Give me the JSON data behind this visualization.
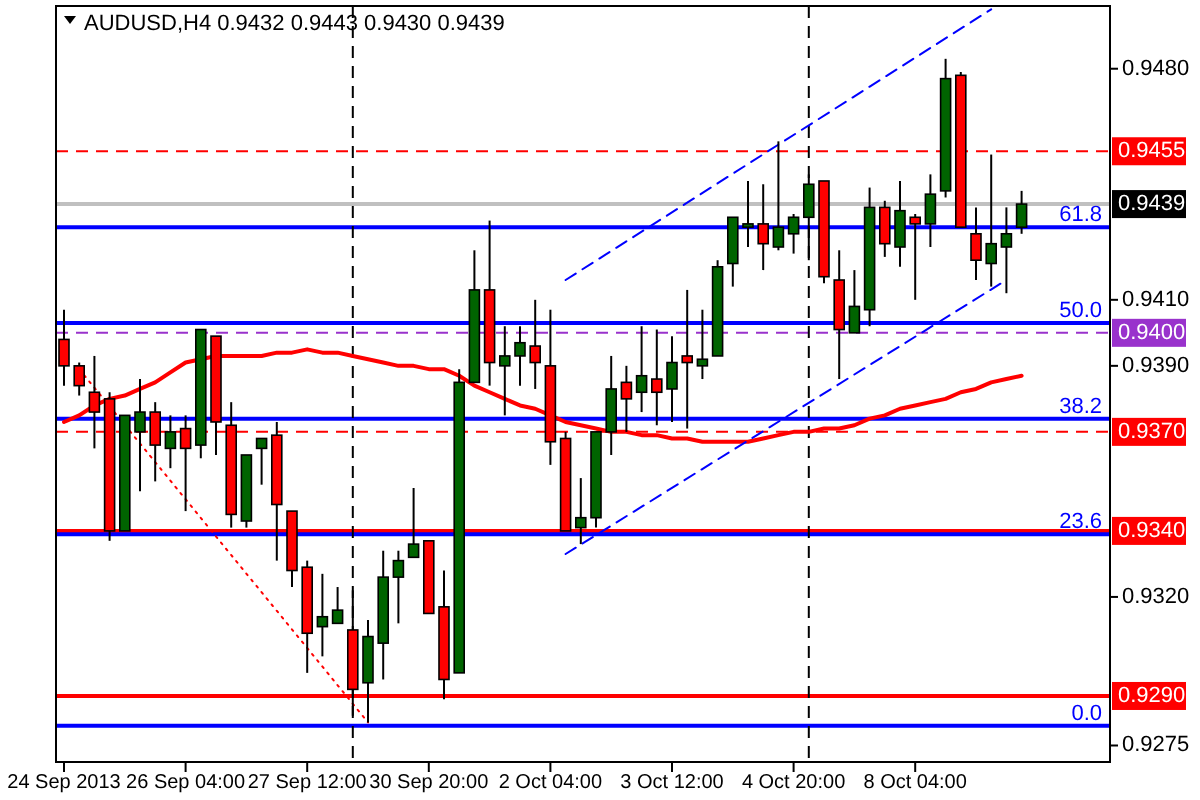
{
  "chart_data": {
    "type": "candlestick",
    "title": "AUDUSD,H4 0.9432 0.9443 0.9430 0.9439",
    "categories": [
      "24 Sep 2013",
      null,
      null,
      null,
      null,
      null,
      null,
      null,
      "26 Sep 04:00",
      null,
      null,
      null,
      null,
      null,
      null,
      null,
      "27 Sep 12:00",
      null,
      null,
      null,
      null,
      null,
      null,
      null,
      "30 Sep 20:00",
      null,
      null,
      null,
      null,
      null,
      null,
      null,
      "2 Oct 04:00",
      null,
      null,
      null,
      null,
      null,
      null,
      null,
      "3 Oct 12:00",
      null,
      null,
      null,
      null,
      null,
      null,
      null,
      "4 Oct 20:00",
      null,
      null,
      null,
      null,
      null,
      null,
      null,
      "8 Oct 04:00",
      null,
      null,
      null,
      null,
      null,
      null,
      null
    ],
    "ohlc": [
      [
        0.9398,
        0.9407,
        0.9384,
        0.939
      ],
      [
        0.939,
        0.9391,
        0.9381,
        0.9384
      ],
      [
        0.9382,
        0.9393,
        0.9365,
        0.9376
      ],
      [
        0.938,
        0.9382,
        0.9337,
        0.934
      ],
      [
        0.934,
        0.9375,
        0.934,
        0.9375
      ],
      [
        0.937,
        0.9386,
        0.9352,
        0.9376
      ],
      [
        0.9376,
        0.9379,
        0.9355,
        0.9366
      ],
      [
        0.9365,
        0.9375,
        0.9359,
        0.937
      ],
      [
        0.9371,
        0.9375,
        0.9346,
        0.9365
      ],
      [
        0.9366,
        0.9401,
        0.9362,
        0.9401
      ],
      [
        0.9399,
        0.9399,
        0.9363,
        0.9373
      ],
      [
        0.9372,
        0.9379,
        0.9341,
        0.9345
      ],
      [
        0.9343,
        0.9363,
        0.9341,
        0.9363
      ],
      [
        0.9365,
        0.9368,
        0.9354,
        0.9368
      ],
      [
        0.9369,
        0.9373,
        0.9331,
        0.9348
      ],
      [
        0.9346,
        0.9346,
        0.9323,
        0.9328
      ],
      [
        0.9329,
        0.9331,
        0.9297,
        0.9309
      ],
      [
        0.9311,
        0.9327,
        0.9302,
        0.9314
      ],
      [
        0.9312,
        0.9323,
        0.9312,
        0.9316
      ],
      [
        0.931,
        0.9322,
        0.9284,
        0.9292
      ],
      [
        0.9294,
        0.9313,
        0.9282,
        0.9308
      ],
      [
        0.9306,
        0.9334,
        0.9295,
        0.9326
      ],
      [
        0.9326,
        0.9334,
        0.9312,
        0.9331
      ],
      [
        0.9332,
        0.9353,
        0.9332,
        0.9336
      ],
      [
        0.9337,
        0.9337,
        0.9315,
        0.9315
      ],
      [
        0.9317,
        0.9328,
        0.9289,
        0.9295
      ],
      [
        0.9297,
        0.9389,
        0.9297,
        0.9385
      ],
      [
        0.9385,
        0.9425,
        0.9385,
        0.9413
      ],
      [
        0.9413,
        0.9434,
        0.9384,
        0.9391
      ],
      [
        0.939,
        0.9402,
        0.9375,
        0.9393
      ],
      [
        0.9393,
        0.9402,
        0.9384,
        0.9397
      ],
      [
        0.9396,
        0.941,
        0.9383,
        0.9391
      ],
      [
        0.939,
        0.9407,
        0.936,
        0.9367
      ],
      [
        0.9368,
        0.937,
        0.934,
        0.934
      ],
      [
        0.9341,
        0.9356,
        0.9336,
        0.9344
      ],
      [
        0.9344,
        0.937,
        0.9341,
        0.937
      ],
      [
        0.937,
        0.9393,
        0.9363,
        0.9383
      ],
      [
        0.9385,
        0.939,
        0.937,
        0.938
      ],
      [
        0.9382,
        0.9402,
        0.9376,
        0.9387
      ],
      [
        0.9386,
        0.9401,
        0.9372,
        0.9382
      ],
      [
        0.9383,
        0.9399,
        0.9373,
        0.9391
      ],
      [
        0.9393,
        0.9413,
        0.9371,
        0.9391
      ],
      [
        0.939,
        0.9407,
        0.9386,
        0.9392
      ],
      [
        0.9393,
        0.9422,
        0.9393,
        0.942
      ],
      [
        0.9421,
        0.9435,
        0.9414,
        0.9435
      ],
      [
        0.9432,
        0.9446,
        0.9426,
        0.9433
      ],
      [
        0.9433,
        0.9445,
        0.9419,
        0.9427
      ],
      [
        0.9426,
        0.9458,
        0.9425,
        0.9432
      ],
      [
        0.943,
        0.9436,
        0.9424,
        0.9435
      ],
      [
        0.9435,
        0.9448,
        0.9422,
        0.9445
      ],
      [
        0.9446,
        0.9446,
        0.9415,
        0.9417
      ],
      [
        0.9416,
        0.9425,
        0.9386,
        0.9401
      ],
      [
        0.94,
        0.9419,
        0.94,
        0.9408
      ],
      [
        0.9407,
        0.9444,
        0.9402,
        0.9438
      ],
      [
        0.9438,
        0.944,
        0.9423,
        0.9427
      ],
      [
        0.9426,
        0.9446,
        0.942,
        0.9437
      ],
      [
        0.9435,
        0.9436,
        0.941,
        0.9433
      ],
      [
        0.9433,
        0.9448,
        0.9426,
        0.9442
      ],
      [
        0.9443,
        0.9483,
        0.9441,
        0.9477
      ],
      [
        0.9478,
        0.9479,
        0.9432,
        0.9432
      ],
      [
        0.943,
        0.9438,
        0.9416,
        0.9422
      ],
      [
        0.9421,
        0.9454,
        0.9414,
        0.9427
      ],
      [
        0.9426,
        0.9438,
        0.9412,
        0.943
      ],
      [
        0.9432,
        0.9443,
        0.943,
        0.9439
      ]
    ],
    "colors": [
      "#ff0000",
      "#ff0000",
      "#ff0000",
      "#ff0000",
      "#006400",
      "#006400",
      "#ff0000",
      "#006400",
      "#ff0000",
      "#006400",
      "#ff0000",
      "#ff0000",
      "#006400",
      "#006400",
      "#ff0000",
      "#ff0000",
      "#ff0000",
      "#006400",
      "#006400",
      "#ff0000",
      "#006400",
      "#006400",
      "#006400",
      "#006400",
      "#ff0000",
      "#ff0000",
      "#006400",
      "#006400",
      "#ff0000",
      "#006400",
      "#006400",
      "#ff0000",
      "#ff0000",
      "#ff0000",
      "#006400",
      "#006400",
      "#006400",
      "#ff0000",
      "#006400",
      "#ff0000",
      "#006400",
      "#ff0000",
      "#006400",
      "#006400",
      "#006400",
      "#006400",
      "#ff0000",
      "#006400",
      "#006400",
      "#006400",
      "#ff0000",
      "#ff0000",
      "#006400",
      "#006400",
      "#ff0000",
      "#006400",
      "#ff0000",
      "#006400",
      "#006400",
      "#ff0000",
      "#ff0000",
      "#006400",
      "#006400",
      "#006400"
    ],
    "series": [
      {
        "type": "line",
        "color": "#ff0000",
        "values": [
          0.9373,
          0.9375,
          0.9378,
          0.938,
          0.9381,
          0.9383,
          0.9385,
          0.9388,
          0.9391,
          0.9392,
          0.9393,
          0.9393,
          0.9393,
          0.9393,
          0.9394,
          0.9394,
          0.9395,
          0.9394,
          0.9394,
          0.9393,
          0.9392,
          0.9391,
          0.939,
          0.939,
          0.9389,
          0.9389,
          0.9387,
          0.9384,
          0.9382,
          0.938,
          0.9378,
          0.9377,
          0.9375,
          0.9373,
          0.9372,
          0.9371,
          0.937,
          0.937,
          0.9369,
          0.9369,
          0.9368,
          0.9368,
          0.9367,
          0.9367,
          0.9367,
          0.9367,
          0.9368,
          0.9369,
          0.937,
          0.937,
          0.9371,
          0.9371,
          0.9372,
          0.9374,
          0.9375,
          0.9377,
          0.9378,
          0.9379,
          0.938,
          0.9382,
          0.9383,
          0.9385,
          0.9386,
          0.9387
        ]
      },
      {
        "type": "line",
        "color": "#0000ff",
        "line_style": "dashed",
        "values": [
          null,
          null,
          null,
          null,
          null,
          null,
          null,
          null,
          null,
          null,
          null,
          null,
          null,
          null,
          null,
          null,
          null,
          null,
          null,
          null,
          null,
          null,
          null,
          null,
          null,
          null,
          null,
          null,
          null,
          null,
          null,
          null,
          null,
          0.9333,
          null,
          null,
          null,
          null,
          null,
          null,
          null,
          null,
          null,
          null,
          null,
          null,
          null,
          null,
          null,
          null,
          null,
          null,
          null,
          null,
          null,
          null,
          null,
          null,
          null,
          null,
          null,
          null,
          0.9416,
          null
        ]
      },
      {
        "type": "line",
        "color": "#0000ff",
        "line_style": "dashed",
        "values": [
          null,
          null,
          null,
          null,
          null,
          null,
          null,
          null,
          null,
          null,
          null,
          null,
          null,
          null,
          null,
          null,
          null,
          null,
          null,
          null,
          null,
          null,
          null,
          null,
          null,
          null,
          null,
          null,
          null,
          null,
          null,
          null,
          null,
          0.9416,
          null,
          null,
          null,
          null,
          null,
          null,
          null,
          null,
          null,
          null,
          null,
          null,
          null,
          null,
          null,
          null,
          null,
          null,
          null,
          null,
          null,
          null,
          null,
          null,
          null,
          null,
          null,
          0.9498,
          null,
          null
        ]
      },
      {
        "type": "line",
        "color": "#ff0000",
        "line_style": "dotted",
        "values": [
          null,
          0.9389,
          null,
          null,
          null,
          null,
          null,
          null,
          null,
          null,
          null,
          null,
          null,
          null,
          null,
          null,
          null,
          null,
          null,
          null,
          0.9282,
          null,
          null,
          null,
          null,
          null,
          null,
          null,
          null,
          null,
          null,
          null,
          null,
          null,
          null,
          null,
          null,
          null,
          null,
          null,
          null,
          null,
          null,
          null,
          null,
          null,
          null,
          null,
          null,
          null,
          null,
          null,
          null,
          null,
          null,
          null,
          null,
          null,
          null,
          null,
          null,
          null,
          null,
          null
        ]
      }
    ],
    "ylim": [
      0.927,
      0.9499
    ],
    "yticks": [
      {
        "value": 0.948,
        "label": "0.9480"
      },
      {
        "value": 0.941,
        "label": "0.9410"
      },
      {
        "value": 0.939,
        "label": "0.9390"
      },
      {
        "value": 0.932,
        "label": "0.9320"
      },
      {
        "value": 0.9275,
        "label": "0.9275"
      }
    ],
    "ref_lines": [
      {
        "axis": "y",
        "value": 0.9439,
        "label": "0.9439",
        "color": "#c0c0c0",
        "line_style": "solid"
      },
      {
        "axis": "y",
        "value": 0.9455,
        "label": "0.9455",
        "color": "#ff0000",
        "line_style": "dashed"
      },
      {
        "axis": "y",
        "value": 0.94,
        "label": "0.9400",
        "color": "#9932cc",
        "line_style": "dashed"
      },
      {
        "axis": "y",
        "value": 0.937,
        "label": "0.9370",
        "color": "#ff0000",
        "line_style": "dashed"
      },
      {
        "axis": "y",
        "value": 0.934,
        "label": "0.9340",
        "color": "#ff0000",
        "line_style": "solid"
      },
      {
        "axis": "y",
        "value": 0.929,
        "label": "0.9290",
        "color": "#ff0000",
        "line_style": "solid"
      },
      {
        "axis": "y",
        "value": 0.9432,
        "color": "#0000ff",
        "line_style": "solid"
      },
      {
        "axis": "y",
        "value": 0.9403,
        "color": "#0000ff",
        "line_style": "solid"
      },
      {
        "axis": "y",
        "value": 0.9374,
        "color": "#0000ff",
        "line_style": "solid"
      },
      {
        "axis": "y",
        "value": 0.9339,
        "color": "#0000ff",
        "line_style": "solid"
      },
      {
        "axis": "y",
        "value": 0.9281,
        "color": "#0000ff",
        "line_style": "solid"
      }
    ],
    "annotations": [
      {
        "text": "61.8",
        "y": 0.9432
      },
      {
        "text": "50.0",
        "y": 0.9403
      },
      {
        "text": "38.2",
        "y": 0.9374
      },
      {
        "text": "23.6",
        "y": 0.9339
      },
      {
        "text": "0.0",
        "y": 0.9281
      }
    ]
  }
}
